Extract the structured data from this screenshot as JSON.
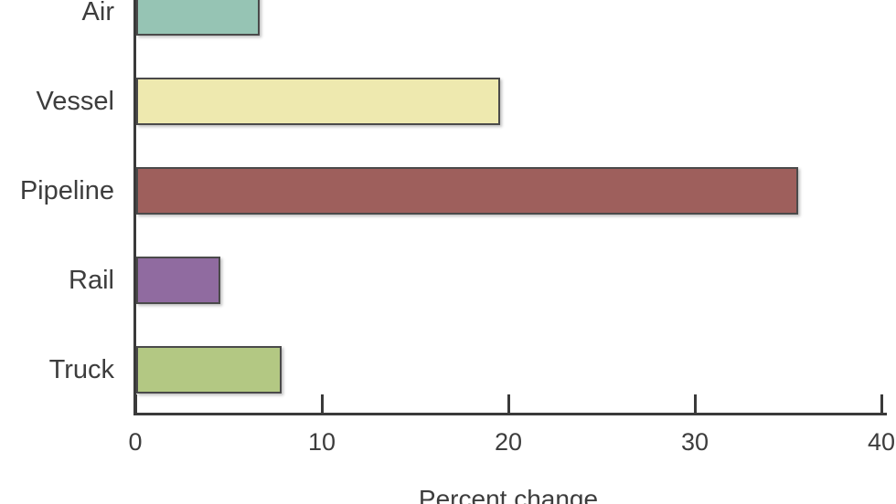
{
  "chart_data": {
    "type": "bar",
    "orientation": "horizontal",
    "title": "",
    "xlabel": "Percent change",
    "ylabel": "",
    "categories": [
      "Air",
      "Vessel",
      "Pipeline",
      "Rail",
      "Truck"
    ],
    "values": [
      6.6,
      19.5,
      35.5,
      4.5,
      7.8
    ],
    "colors": [
      "#96c4b4",
      "#eee9af",
      "#9e5f5c",
      "#906ba0",
      "#b3c883"
    ],
    "bar_border_color": "#4a4a4a",
    "axis_color": "#3a3a3a",
    "text_color": "#3d3d3d",
    "xlim": [
      0,
      40
    ],
    "xticks": [
      0,
      10,
      20,
      30,
      40
    ],
    "grid": false,
    "legend": "none"
  }
}
